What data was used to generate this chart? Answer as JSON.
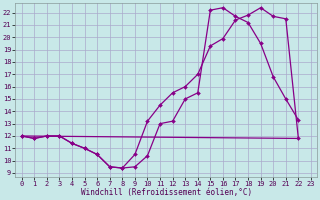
{
  "background_color": "#c8e8e8",
  "grid_color": "#aaaacc",
  "line_color": "#880088",
  "xlabel": "Windchill (Refroidissement éolien,°C)",
  "xlim": [
    -0.5,
    23.5
  ],
  "ylim": [
    8.7,
    22.8
  ],
  "yticks": [
    9,
    10,
    11,
    12,
    13,
    14,
    15,
    16,
    17,
    18,
    19,
    20,
    21,
    22
  ],
  "xticks": [
    0,
    1,
    2,
    3,
    4,
    5,
    6,
    7,
    8,
    9,
    10,
    11,
    12,
    13,
    14,
    15,
    16,
    17,
    18,
    19,
    20,
    21,
    22,
    23
  ],
  "curve1_x": [
    0,
    1,
    2,
    3,
    4,
    5,
    6,
    7,
    8,
    9,
    10,
    11,
    12,
    13,
    14,
    15,
    16,
    17,
    18,
    19,
    20,
    21,
    22
  ],
  "curve1_y": [
    12.0,
    11.8,
    12.0,
    12.0,
    11.4,
    11.0,
    10.5,
    9.5,
    9.4,
    9.5,
    10.4,
    13.0,
    13.2,
    15.0,
    15.5,
    22.2,
    22.4,
    21.7,
    21.2,
    19.5,
    16.8,
    15.0,
    13.3
  ],
  "curve2_x": [
    0,
    1,
    2,
    3,
    4,
    5,
    6,
    7,
    8,
    9,
    10,
    11,
    12,
    13,
    14,
    15,
    16,
    17,
    18,
    19,
    20,
    21,
    22
  ],
  "curve2_y": [
    12.0,
    11.8,
    12.0,
    12.0,
    11.4,
    11.0,
    10.5,
    9.5,
    9.4,
    10.5,
    13.2,
    14.5,
    15.5,
    16.0,
    17.0,
    19.3,
    19.9,
    21.4,
    21.8,
    22.4,
    21.7,
    21.5,
    11.8
  ],
  "line3_x": [
    0,
    22
  ],
  "line3_y": [
    12.0,
    11.8
  ],
  "xlabel_fontsize": 5.5,
  "tick_fontsize": 5.0,
  "linewidth": 0.9,
  "markersize": 2.0
}
